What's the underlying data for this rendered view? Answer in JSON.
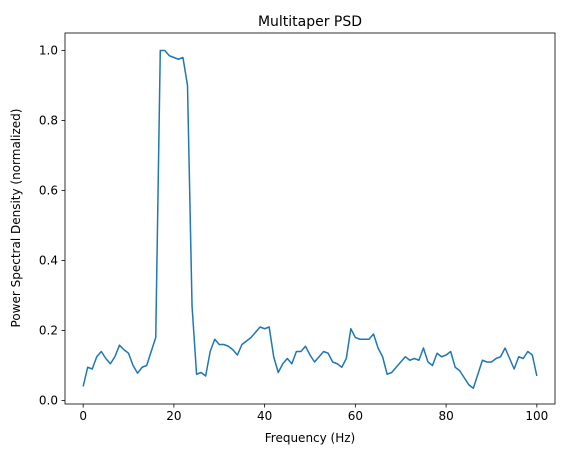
{
  "chart_data": {
    "type": "line",
    "title": "Multitaper PSD",
    "xlabel": "Frequency (Hz)",
    "ylabel": "Power Spectral Density (normalized)",
    "xlim": [
      -4,
      104
    ],
    "ylim": [
      -0.01,
      1.05
    ],
    "x_ticks": [
      0,
      20,
      40,
      60,
      80,
      100
    ],
    "y_ticks": [
      0.0,
      0.2,
      0.4,
      0.6,
      0.8,
      1.0
    ],
    "x_tick_labels": [
      "0",
      "20",
      "40",
      "60",
      "80",
      "100"
    ],
    "y_tick_labels": [
      "0.0",
      "0.2",
      "0.4",
      "0.6",
      "0.8",
      "1.0"
    ],
    "grid": false,
    "series": [
      {
        "color": "#1f77b4",
        "x": [
          0,
          1,
          2,
          3,
          4,
          5,
          6,
          7,
          8,
          9,
          10,
          11,
          12,
          13,
          14,
          15,
          16,
          17,
          18,
          19,
          20,
          21,
          22,
          23,
          24,
          25,
          26,
          27,
          28,
          29,
          30,
          31,
          32,
          33,
          34,
          35,
          36,
          37,
          38,
          39,
          40,
          41,
          42,
          43,
          44,
          45,
          46,
          47,
          48,
          49,
          50,
          51,
          52,
          53,
          54,
          55,
          56,
          57,
          58,
          59,
          60,
          61,
          62,
          63,
          64,
          65,
          66,
          67,
          68,
          69,
          70,
          71,
          72,
          73,
          74,
          75,
          76,
          77,
          78,
          79,
          80,
          81,
          82,
          83,
          84,
          85,
          86,
          87,
          88,
          89,
          90,
          91,
          92,
          93,
          94,
          95,
          96,
          97,
          98,
          99,
          100
        ],
        "y": [
          0.04,
          0.095,
          0.09,
          0.125,
          0.14,
          0.12,
          0.105,
          0.125,
          0.158,
          0.145,
          0.135,
          0.1,
          0.078,
          0.095,
          0.1,
          0.14,
          0.18,
          1.0,
          1.0,
          0.985,
          0.98,
          0.975,
          0.98,
          0.9,
          0.27,
          0.075,
          0.08,
          0.07,
          0.14,
          0.175,
          0.16,
          0.16,
          0.155,
          0.145,
          0.13,
          0.16,
          0.17,
          0.18,
          0.195,
          0.21,
          0.205,
          0.21,
          0.125,
          0.08,
          0.105,
          0.12,
          0.105,
          0.14,
          0.14,
          0.155,
          0.13,
          0.11,
          0.125,
          0.14,
          0.135,
          0.11,
          0.105,
          0.095,
          0.12,
          0.205,
          0.18,
          0.175,
          0.175,
          0.175,
          0.19,
          0.15,
          0.125,
          0.075,
          0.08,
          0.095,
          0.11,
          0.125,
          0.115,
          0.12,
          0.115,
          0.15,
          0.11,
          0.1,
          0.135,
          0.125,
          0.13,
          0.14,
          0.095,
          0.085,
          0.065,
          0.045,
          0.035,
          0.075,
          0.115,
          0.11,
          0.11,
          0.12,
          0.125,
          0.15,
          0.12,
          0.09,
          0.125,
          0.12,
          0.14,
          0.13,
          0.07
        ]
      }
    ]
  }
}
